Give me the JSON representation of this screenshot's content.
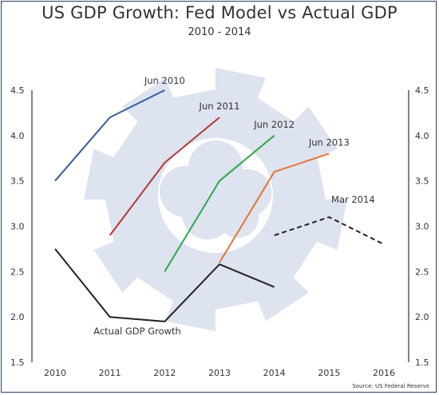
{
  "title": "US GDP Growth: Fed Model vs Actual GDP",
  "subtitle": "2010 - 2014",
  "source": "Source: US Federal Reserve",
  "colors": {
    "axis": "#333333",
    "watermark": "#dde3ef",
    "frame": "#2c3f62"
  },
  "chart_data": {
    "type": "line",
    "title": "US GDP Growth: Fed Model vs Actual GDP",
    "subtitle": "2010 - 2014",
    "xlabel": "",
    "ylabel": "",
    "xlim": [
      2010,
      2016
    ],
    "ylim": [
      1.5,
      4.5
    ],
    "x_ticks": [
      "2010",
      "2011",
      "2012",
      "2013",
      "2014",
      "2015",
      "2016"
    ],
    "y_ticks": [
      "1.5",
      "2.0",
      "2.5",
      "3.0",
      "3.5",
      "4.0",
      "4.5"
    ],
    "grid": false,
    "legend": "none (direct labels)",
    "series": [
      {
        "name": "Jun 2010",
        "color": "#3a5c99",
        "dash": false,
        "x": [
          2010,
          2011,
          2012
        ],
        "y": [
          3.5,
          4.2,
          4.5
        ]
      },
      {
        "name": "Jun 2011",
        "color": "#b03a38",
        "dash": false,
        "x": [
          2011,
          2012,
          2013
        ],
        "y": [
          2.9,
          3.7,
          4.2
        ]
      },
      {
        "name": "Jun 2012",
        "color": "#2fa84f",
        "dash": false,
        "x": [
          2012,
          2013,
          2014
        ],
        "y": [
          2.5,
          3.5,
          4.0
        ]
      },
      {
        "name": "Jun 2013",
        "color": "#e0753a",
        "dash": false,
        "x": [
          2013,
          2014,
          2015
        ],
        "y": [
          2.6,
          3.6,
          3.8
        ]
      },
      {
        "name": "Mar 2014",
        "color": "#222222",
        "dash": true,
        "x": [
          2014,
          2015,
          2016
        ],
        "y": [
          2.9,
          3.1,
          2.8
        ]
      },
      {
        "name": "Actual GDP Growth",
        "color": "#222222",
        "dash": false,
        "x": [
          2010,
          2011,
          2012,
          2013,
          2014
        ],
        "y": [
          2.75,
          2.0,
          1.95,
          2.58,
          2.33
        ]
      }
    ]
  }
}
